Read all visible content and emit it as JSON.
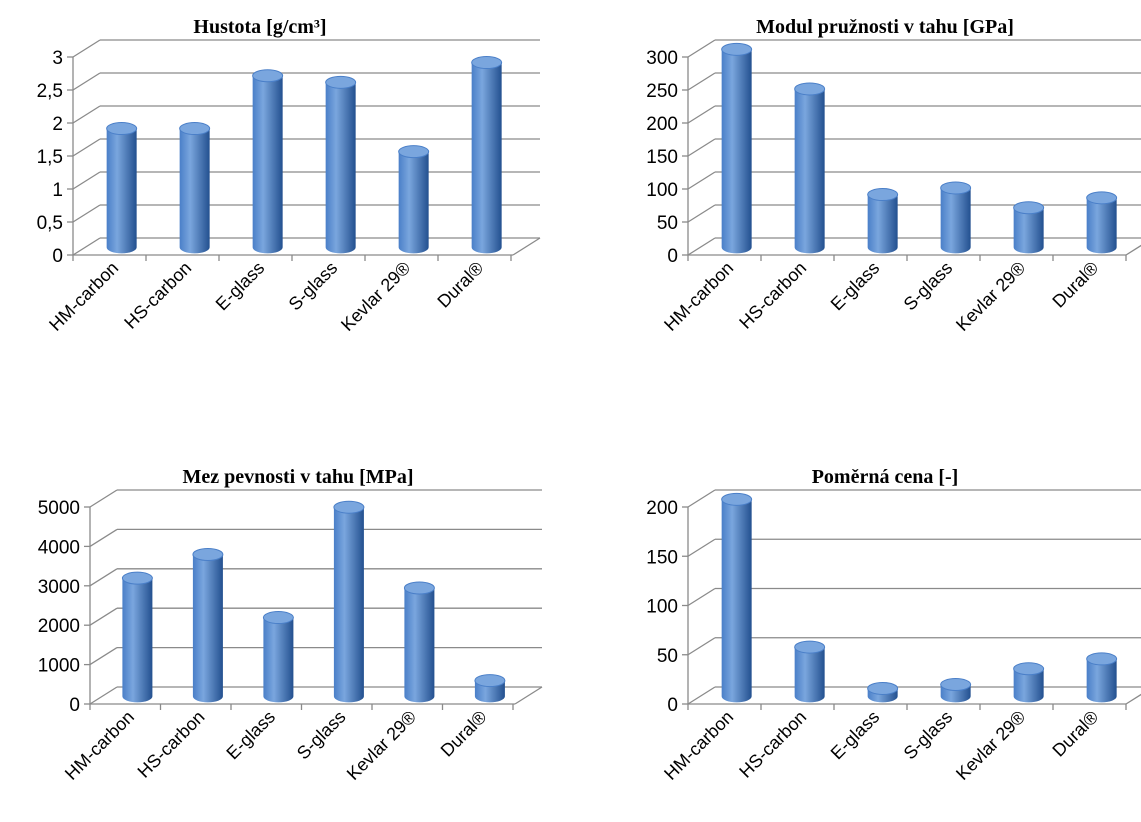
{
  "chart_data": [
    {
      "type": "bar",
      "title": "Hustota [g/cm³]",
      "categories": [
        "HM-carbon",
        "HS-carbon",
        "E-glass",
        "S-glass",
        "Kevlar 29®",
        "Dural®"
      ],
      "values": [
        1.8,
        1.8,
        2.6,
        2.5,
        1.45,
        2.8
      ],
      "ylim": [
        0,
        3
      ],
      "yticks": [
        "0",
        "0,5",
        "1",
        "1,5",
        "2",
        "2,5",
        "3"
      ],
      "grid": true,
      "legend": "none"
    },
    {
      "type": "bar",
      "title": "Modul pružnosti v tahu [GPa]",
      "categories": [
        "HM-carbon",
        "HS-carbon",
        "E-glass",
        "S-glass",
        "Kevlar 29®",
        "Dural®"
      ],
      "values": [
        300,
        240,
        80,
        90,
        60,
        75
      ],
      "ylim": [
        0,
        300
      ],
      "yticks": [
        "0",
        "50",
        "100",
        "150",
        "200",
        "250",
        "300"
      ],
      "grid": true,
      "legend": "none"
    },
    {
      "type": "bar",
      "title": "Mez pevnosti v tahu [MPa]",
      "categories": [
        "HM-carbon",
        "HS-carbon",
        "E-glass",
        "S-glass",
        "Kevlar 29®",
        "Dural®"
      ],
      "values": [
        3000,
        3600,
        2000,
        4800,
        2750,
        400
      ],
      "ylim": [
        0,
        5000
      ],
      "yticks": [
        "0",
        "1000",
        "2000",
        "3000",
        "4000",
        "5000"
      ],
      "grid": true,
      "legend": "none"
    },
    {
      "type": "bar",
      "title": "Poměrná cena [-]",
      "categories": [
        "HM-carbon",
        "HS-carbon",
        "E-glass",
        "S-glass",
        "Kevlar 29®",
        "Dural®"
      ],
      "values": [
        200,
        50,
        8,
        12,
        28,
        38
      ],
      "ylim": [
        0,
        200
      ],
      "yticks": [
        "0",
        "50",
        "100",
        "150",
        "200"
      ],
      "grid": true,
      "legend": "none"
    }
  ],
  "colors": {
    "bar_light": "#7aa6de",
    "bar_mid": "#4a7fc8",
    "bar_dark": "#23508f",
    "grid": "#8a8a8a"
  }
}
